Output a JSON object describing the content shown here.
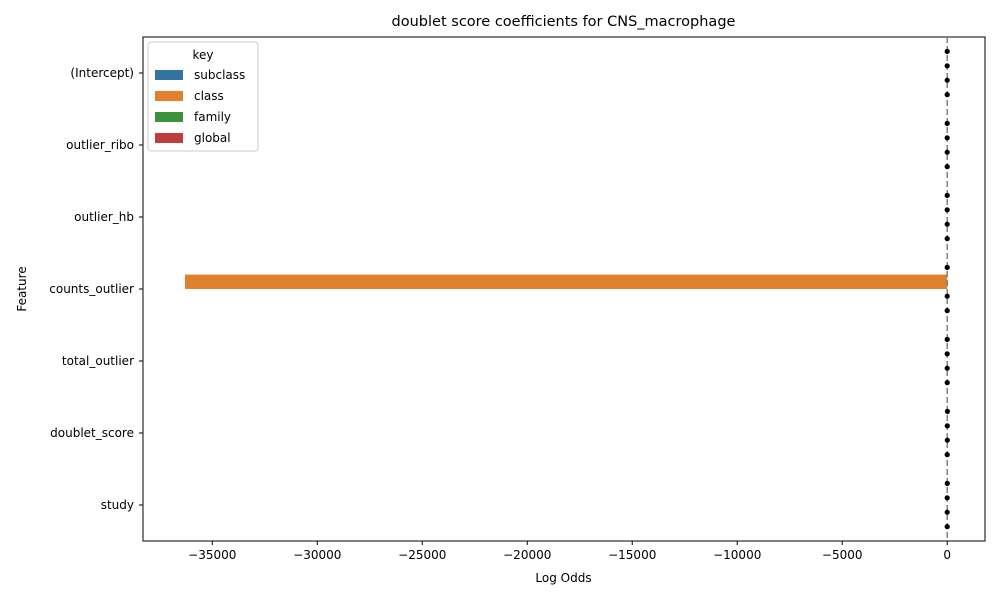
{
  "chart_data": {
    "type": "bar",
    "orientation": "horizontal",
    "title": "doublet score coefficients for CNS_macrophage",
    "xlabel": "Log Odds",
    "ylabel": "Feature",
    "categories": [
      "(Intercept)",
      "outlier_ribo",
      "outlier_hb",
      "counts_outlier",
      "total_outlier",
      "doublet_score",
      "study"
    ],
    "series": [
      {
        "name": "subclass",
        "color": "#3274a1",
        "values": [
          0,
          0,
          0,
          0,
          0,
          10,
          5
        ]
      },
      {
        "name": "class",
        "color": "#e1812c",
        "values": [
          0,
          0,
          0,
          -36300,
          0,
          5,
          0
        ]
      },
      {
        "name": "family",
        "color": "#3a923a",
        "values": [
          0,
          0,
          0,
          0,
          0,
          5,
          0
        ]
      },
      {
        "name": "global",
        "color": "#c03d3e",
        "values": [
          0,
          0,
          0,
          0,
          0,
          0,
          0
        ]
      }
    ],
    "xlim": [
      -38300,
      1800
    ],
    "xticks": [
      -35000,
      -30000,
      -25000,
      -20000,
      -15000,
      -10000,
      -5000,
      0
    ],
    "xtick_labels": [
      "−35000",
      "−30000",
      "−25000",
      "−20000",
      "−15000",
      "−10000",
      "−5000",
      "0"
    ],
    "reference_line": {
      "x": 0,
      "style": "dashed",
      "color": "#808080"
    },
    "grid": false,
    "legend": {
      "title": "key",
      "placement": "top-left"
    }
  }
}
